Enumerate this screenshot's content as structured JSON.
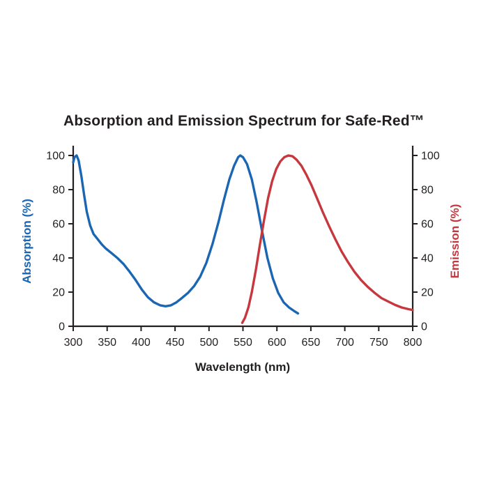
{
  "title": "Absorption and Emission Spectrum for Safe-Red™",
  "colors": {
    "absorption": "#1b66b3",
    "emission": "#c6373e",
    "axis": "#231f20",
    "background": "#ffffff"
  },
  "chart_data": {
    "type": "line",
    "title": "Absorption and Emission Spectrum for Safe-Red™",
    "xlabel": "Wavelength (nm)",
    "left_axis_label": "Absorption (%)",
    "right_axis_label": "Emission (%)",
    "xlim": [
      300,
      800
    ],
    "ylim": [
      0,
      100
    ],
    "x_ticks": [
      300,
      350,
      400,
      450,
      500,
      550,
      600,
      650,
      700,
      750,
      800
    ],
    "y_ticks_left": [
      0,
      20,
      40,
      60,
      80,
      100
    ],
    "y_ticks_right": [
      0,
      20,
      40,
      60,
      80,
      100
    ],
    "grid": false,
    "legend": "none",
    "series": [
      {
        "id": "absorption",
        "name": "Absorption (%)",
        "axis": "left",
        "color": "#1b66b3",
        "points": [
          [
            300,
            96
          ],
          [
            302,
            99
          ],
          [
            305,
            100
          ],
          [
            308,
            97
          ],
          [
            312,
            88
          ],
          [
            316,
            77
          ],
          [
            320,
            67
          ],
          [
            325,
            59
          ],
          [
            330,
            54
          ],
          [
            336,
            51
          ],
          [
            342,
            48
          ],
          [
            348,
            45.5
          ],
          [
            356,
            43
          ],
          [
            365,
            40
          ],
          [
            374,
            36.5
          ],
          [
            383,
            32
          ],
          [
            392,
            27
          ],
          [
            401,
            21.5
          ],
          [
            410,
            17
          ],
          [
            419,
            14
          ],
          [
            428,
            12.3
          ],
          [
            436,
            11.7
          ],
          [
            444,
            12.3
          ],
          [
            452,
            14
          ],
          [
            460,
            16.5
          ],
          [
            469,
            19.5
          ],
          [
            478,
            23.5
          ],
          [
            487,
            29
          ],
          [
            496,
            37
          ],
          [
            505,
            48
          ],
          [
            514,
            61
          ],
          [
            522,
            74
          ],
          [
            530,
            86
          ],
          [
            537,
            94
          ],
          [
            543,
            99
          ],
          [
            546,
            100
          ],
          [
            550,
            99
          ],
          [
            556,
            95
          ],
          [
            563,
            86
          ],
          [
            570,
            73
          ],
          [
            578,
            56
          ],
          [
            586,
            40
          ],
          [
            594,
            28
          ],
          [
            602,
            19.5
          ],
          [
            610,
            14
          ],
          [
            618,
            11
          ],
          [
            625,
            9
          ],
          [
            631,
            7.5
          ]
        ]
      },
      {
        "id": "emission",
        "name": "Emission (%)",
        "axis": "right",
        "color": "#c6373e",
        "points": [
          [
            549,
            2
          ],
          [
            553,
            5
          ],
          [
            558,
            11
          ],
          [
            563,
            20
          ],
          [
            569,
            33
          ],
          [
            575,
            48
          ],
          [
            581,
            62
          ],
          [
            587,
            75
          ],
          [
            593,
            85
          ],
          [
            599,
            92
          ],
          [
            605,
            96.5
          ],
          [
            611,
            99
          ],
          [
            617,
            100
          ],
          [
            623,
            99.5
          ],
          [
            629,
            97.5
          ],
          [
            636,
            94
          ],
          [
            643,
            89
          ],
          [
            651,
            82.5
          ],
          [
            659,
            75
          ],
          [
            668,
            66.5
          ],
          [
            677,
            58.5
          ],
          [
            686,
            51
          ],
          [
            695,
            44
          ],
          [
            704,
            38
          ],
          [
            714,
            32
          ],
          [
            724,
            27
          ],
          [
            734,
            23
          ],
          [
            744,
            19.5
          ],
          [
            754,
            16.5
          ],
          [
            764,
            14.5
          ],
          [
            774,
            12.5
          ],
          [
            784,
            11
          ],
          [
            794,
            10
          ],
          [
            800,
            9.5
          ]
        ]
      }
    ]
  }
}
